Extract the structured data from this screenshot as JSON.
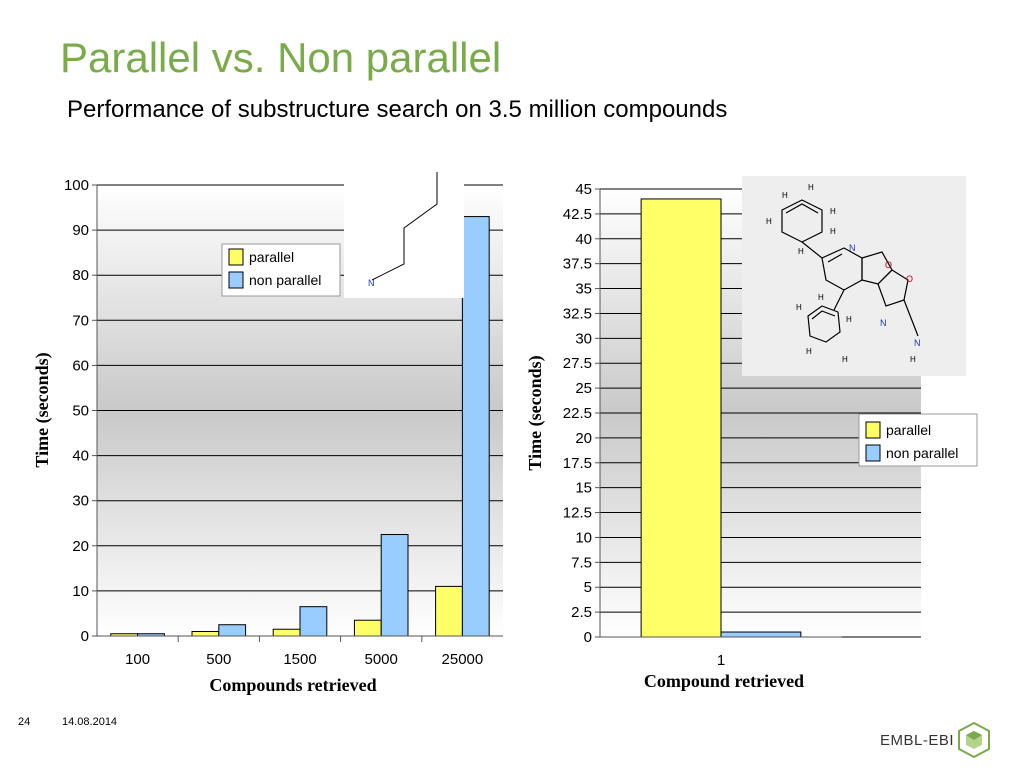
{
  "slide": {
    "title": "Parallel vs. Non parallel",
    "subtitle": "Performance of substructure search on 3.5 million compounds",
    "page_number": "24",
    "date": "14.08.2014",
    "logo_text": "EMBL-EBI"
  },
  "colors": {
    "title": "#7aab4b",
    "parallel": "#ffff66",
    "non_parallel": "#99ccff"
  },
  "chart_data": [
    {
      "type": "bar",
      "categories": [
        "100",
        "500",
        "1500",
        "5000",
        "25000"
      ],
      "series": [
        {
          "name": "parallel",
          "values": [
            0.5,
            1,
            1.5,
            3.5,
            11
          ]
        },
        {
          "name": "non parallel",
          "values": [
            0.5,
            2.5,
            6.5,
            22.5,
            93
          ]
        }
      ],
      "xlabel": "Compounds retrieved",
      "ylabel": "Time (seconds)",
      "ylim": [
        0,
        100
      ],
      "yticks": [
        "0",
        "10",
        "20",
        "30",
        "40",
        "50",
        "60",
        "70",
        "80",
        "90",
        "100"
      ],
      "grid": true,
      "legend": "top-center"
    },
    {
      "type": "bar",
      "categories": [
        "1"
      ],
      "series": [
        {
          "name": "parallel",
          "values": [
            44
          ]
        },
        {
          "name": "non parallel",
          "values": [
            0.5
          ]
        }
      ],
      "xlabel": "Compound retrieved",
      "ylabel": "Time (seconds)",
      "ylim": [
        0,
        45
      ],
      "yticks": [
        "0",
        "2.5",
        "5",
        "7.5",
        "10",
        "12.5",
        "15",
        "17.5",
        "20",
        "22.5",
        "25",
        "27.5",
        "30",
        "32.5",
        "35",
        "37.5",
        "40",
        "42.5",
        "45"
      ],
      "grid": true,
      "legend": "right"
    }
  ],
  "molecule_labels": {
    "fragment_atom": "N",
    "hydrogen": "H",
    "nitrogen": "N",
    "oxygen": "O"
  }
}
